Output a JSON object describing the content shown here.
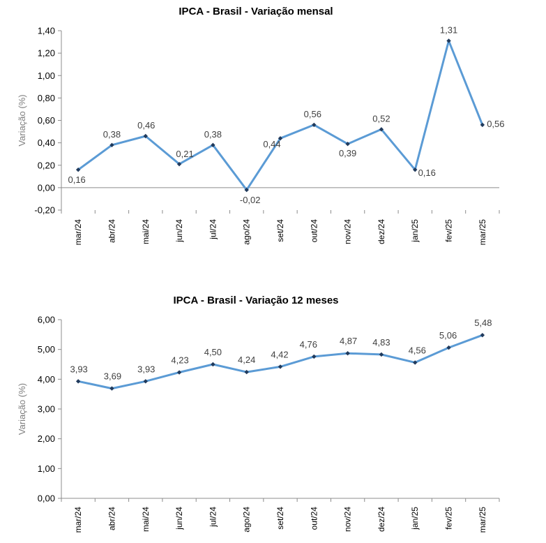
{
  "chart_data": [
    {
      "type": "line",
      "title": "IPCA - Brasil - Variação mensal",
      "ylabel": "Variação (%)",
      "xlabel": "",
      "categories": [
        "mar/24",
        "abr/24",
        "mai/24",
        "jun/24",
        "jul/24",
        "ago/24",
        "set/24",
        "out/24",
        "nov/24",
        "dez/24",
        "jan/25",
        "fev/25",
        "mar/25"
      ],
      "values": [
        0.16,
        0.38,
        0.46,
        0.21,
        0.38,
        -0.02,
        0.44,
        0.56,
        0.39,
        0.52,
        0.16,
        1.31,
        0.56
      ],
      "value_labels": [
        "0,16",
        "0,38",
        "0,46",
        "0,21",
        "0,38",
        "-0,02",
        "0,44",
        "0,56",
        "0,39",
        "0,52",
        "0,16",
        "1,31",
        "0,56"
      ],
      "ylim": [
        -0.2,
        1.4
      ],
      "yticks": [
        -0.2,
        0.0,
        0.2,
        0.4,
        0.6,
        0.8,
        1.0,
        1.2,
        1.4
      ],
      "ytick_labels": [
        "-0,20",
        "0,00",
        "0,20",
        "0,40",
        "0,60",
        "0,80",
        "1,00",
        "1,20",
        "1,40"
      ],
      "grid": false,
      "legend": "none",
      "series_color": "#5b9bd5",
      "marker_color": "#203a5c"
    },
    {
      "type": "line",
      "title": "IPCA - Brasil - Variação 12 meses",
      "ylabel": "Variação (%)",
      "xlabel": "",
      "categories": [
        "mar/24",
        "abr/24",
        "mai/24",
        "jun/24",
        "jul/24",
        "ago/24",
        "set/24",
        "out/24",
        "nov/24",
        "dez/24",
        "jan/25",
        "fev/25",
        "mar/25"
      ],
      "values": [
        3.93,
        3.69,
        3.93,
        4.23,
        4.5,
        4.24,
        4.42,
        4.76,
        4.87,
        4.83,
        4.56,
        5.06,
        5.48
      ],
      "value_labels": [
        "3,93",
        "3,69",
        "3,93",
        "4,23",
        "4,50",
        "4,24",
        "4,42",
        "4,76",
        "4,87",
        "4,83",
        "4,56",
        "5,06",
        "5,48"
      ],
      "ylim": [
        0,
        6
      ],
      "yticks": [
        0,
        1,
        2,
        3,
        4,
        5,
        6
      ],
      "ytick_labels": [
        "0,00",
        "1,00",
        "2,00",
        "3,00",
        "4,00",
        "5,00",
        "6,00"
      ],
      "grid": false,
      "legend": "none",
      "series_color": "#5b9bd5",
      "marker_color": "#203a5c"
    }
  ]
}
